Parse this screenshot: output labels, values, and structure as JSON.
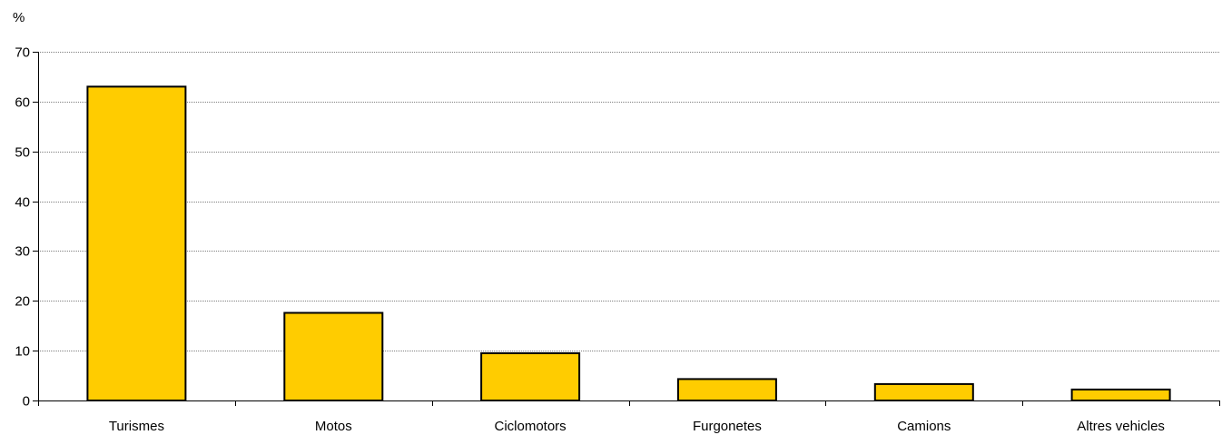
{
  "chart_data": {
    "type": "bar",
    "title": "",
    "xlabel": "",
    "ylabel": "%",
    "categories": [
      "Turismes",
      "Motos",
      "Ciclomotors",
      "Furgonetes",
      "Camions",
      "Altres vehicles"
    ],
    "values": [
      63.0,
      17.6,
      9.5,
      4.3,
      3.3,
      2.2
    ],
    "ylim": [
      0,
      70
    ],
    "yticks": [
      0,
      10,
      20,
      30,
      40,
      50,
      60,
      70
    ],
    "grid": "horizontal dotted",
    "legend": "none",
    "colors": {
      "bar_fill": "#FFCC00",
      "bar_stroke": "#000000",
      "grid": "#808080",
      "axis": "#000000"
    }
  }
}
